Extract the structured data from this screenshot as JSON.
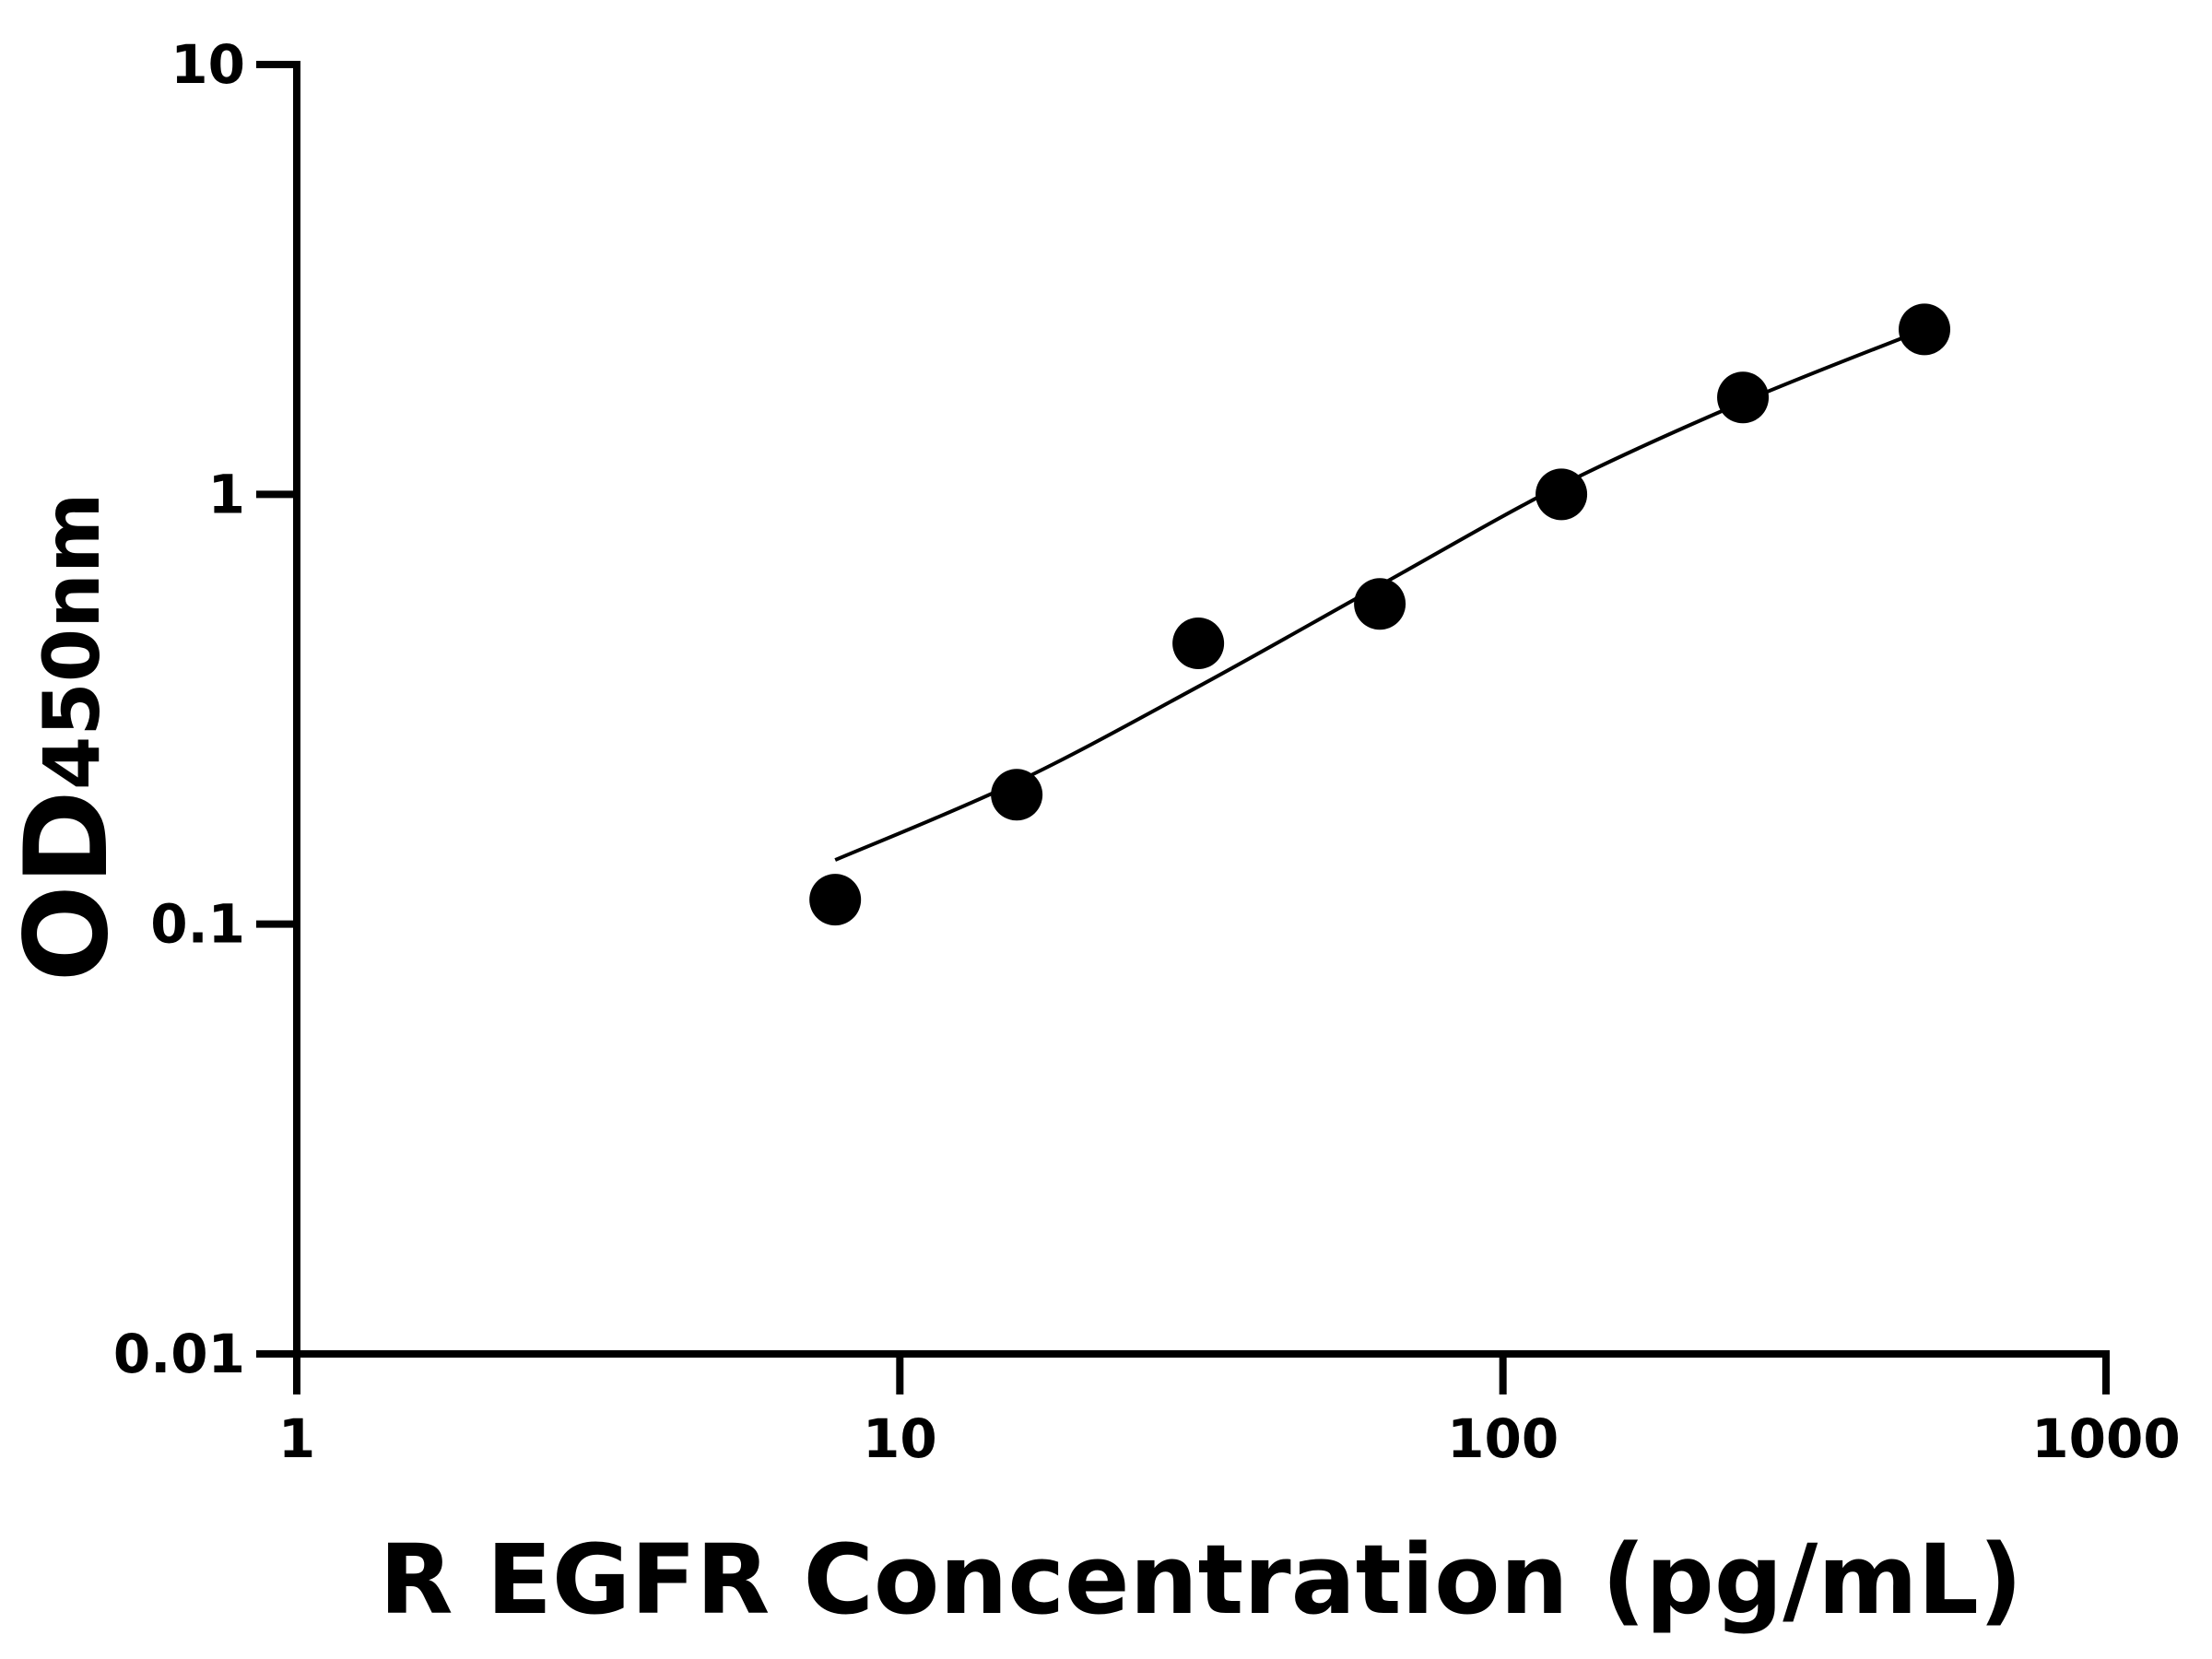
{
  "chart_data": {
    "type": "scatter",
    "xlabel": "R EGFR Concentration (pg/mL)",
    "ylabel": "OD",
    "ylabel_subscript": "450nm",
    "xscale": "log",
    "yscale": "log",
    "xlim": [
      1,
      1000
    ],
    "ylim": [
      0.01,
      10
    ],
    "xticks": [
      1,
      10,
      100,
      1000
    ],
    "yticks": [
      0.01,
      0.1,
      1,
      10
    ],
    "series": [
      {
        "color": "#000000",
        "x": [
          7.8125,
          15.625,
          31.25,
          62.5,
          125,
          250,
          500
        ],
        "values": [
          0.114,
          0.2,
          0.45,
          0.556,
          1.0,
          1.68,
          2.42
        ]
      }
    ],
    "fit": {
      "color": "#000000",
      "x": [
        7.8125,
        15.625,
        31.25,
        62.5,
        125,
        250,
        500
      ],
      "values": [
        0.141,
        0.214,
        0.357,
        0.614,
        1.05,
        1.64,
        2.42
      ]
    }
  }
}
